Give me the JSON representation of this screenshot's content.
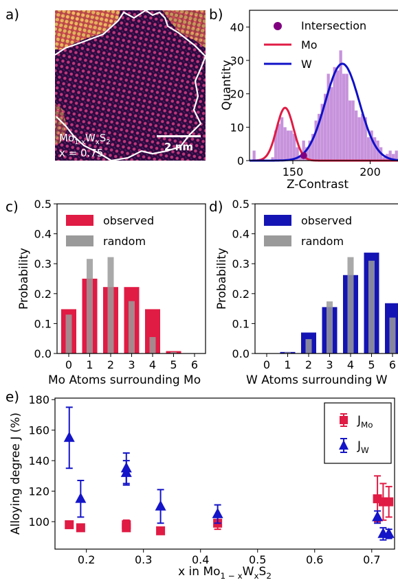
{
  "panel_labels": {
    "a": "a)",
    "b": "b)",
    "c": "c)",
    "d": "d)",
    "e": "e)"
  },
  "panel_a": {
    "composition_label": "Mo1-xWxS2",
    "x_label": "x = 0.75",
    "scale_bar": "2 nm"
  },
  "chart_data": [
    {
      "id": "b",
      "type": "histogram",
      "xlabel": "Z-Contrast",
      "ylabel": "Quantity",
      "xlim": [
        122,
        218
      ],
      "ylim": [
        0,
        45
      ],
      "xticks": [
        150,
        200
      ],
      "yticks": [
        0,
        10,
        20,
        30,
        40
      ],
      "legend": [
        {
          "label": "Intersection",
          "marker": "circle",
          "color": "#800080"
        },
        {
          "label": "Mo",
          "marker": "line",
          "color": "#e01b44"
        },
        {
          "label": "W",
          "marker": "line",
          "color": "#1010c8"
        }
      ],
      "legend_position": "top-left",
      "histogram": {
        "bin_start": 122,
        "bin_width": 2,
        "color": "#c793dc",
        "counts": [
          0,
          3,
          0,
          0,
          0,
          0,
          0,
          1,
          9,
          11,
          13,
          10,
          9,
          9,
          8,
          4,
          1,
          6,
          4,
          6,
          8,
          12,
          14,
          17,
          20,
          26,
          22,
          28,
          27,
          33,
          26,
          26,
          18,
          18,
          15,
          13,
          14,
          13,
          7,
          9,
          7,
          6,
          4,
          1,
          2,
          3,
          2,
          3
        ]
      },
      "fits": [
        {
          "name": "Mo",
          "type": "gaussian",
          "amplitude": 15.8,
          "center": 145,
          "sigma": 5.5,
          "color": "#e01b44"
        },
        {
          "name": "W",
          "type": "gaussian",
          "amplitude": 29,
          "center": 182,
          "sigma": 11,
          "color": "#1010c8"
        }
      ],
      "intersection": {
        "x": 157,
        "y": 1.5
      }
    },
    {
      "id": "c",
      "type": "bar",
      "xlabel": "Mo Atoms surrounding Mo",
      "ylabel": "Probability",
      "categories": [
        "0",
        "1",
        "2",
        "3",
        "4",
        "5",
        "6"
      ],
      "ylim": [
        0,
        0.5
      ],
      "yticks": [
        0.0,
        0.1,
        0.2,
        0.3,
        0.4,
        0.5
      ],
      "series": [
        {
          "name": "observed",
          "color": "#e01b44",
          "values": [
            0.148,
            0.25,
            0.222,
            0.222,
            0.148,
            0.008,
            0
          ]
        },
        {
          "name": "random",
          "color": "#9a9a9a",
          "values": [
            0.13,
            0.316,
            0.322,
            0.175,
            0.055,
            0.005,
            0
          ]
        }
      ],
      "legend_position": "top-left"
    },
    {
      "id": "d",
      "type": "bar",
      "xlabel": "W Atoms surrounding W",
      "ylabel": "Probability",
      "categories": [
        "0",
        "1",
        "2",
        "3",
        "4",
        "5",
        "6"
      ],
      "ylim": [
        0,
        0.5
      ],
      "yticks": [
        0.0,
        0.1,
        0.2,
        0.3,
        0.4,
        0.5
      ],
      "series": [
        {
          "name": "observed",
          "color": "#1414b4",
          "values": [
            0,
            0.005,
            0.07,
            0.155,
            0.262,
            0.337,
            0.168
          ]
        },
        {
          "name": "random",
          "color": "#9a9a9a",
          "values": [
            0,
            0.004,
            0.048,
            0.174,
            0.322,
            0.31,
            0.12
          ]
        }
      ],
      "legend_position": "top-left"
    },
    {
      "id": "e",
      "type": "scatter",
      "xlabel": "x in Mo1−xWxS2",
      "ylabel": "Alloying degree J (%)",
      "xlim": [
        0.145,
        0.74
      ],
      "ylim": [
        82,
        181
      ],
      "xticks": [
        0.2,
        0.3,
        0.4,
        0.5,
        0.6,
        0.7
      ],
      "yticks": [
        100,
        120,
        140,
        160,
        180
      ],
      "legend_position": "top-right",
      "series": [
        {
          "name": "J_Mo",
          "marker": "square",
          "color": "#e01b44",
          "points": [
            {
              "x": 0.17,
              "y": 98,
              "err": 0
            },
            {
              "x": 0.19,
              "y": 96,
              "err": 0
            },
            {
              "x": 0.27,
              "y": 98,
              "err": 3
            },
            {
              "x": 0.27,
              "y": 96,
              "err": 2
            },
            {
              "x": 0.33,
              "y": 94,
              "err": 2
            },
            {
              "x": 0.43,
              "y": 99,
              "err": 4
            },
            {
              "x": 0.71,
              "y": 115,
              "err": 15
            },
            {
              "x": 0.72,
              "y": 113,
              "err": 12
            },
            {
              "x": 0.73,
              "y": 113,
              "err": 10
            }
          ]
        },
        {
          "name": "J_W",
          "marker": "triangle",
          "color": "#1414c8",
          "points": [
            {
              "x": 0.17,
              "y": 155,
              "err": 20
            },
            {
              "x": 0.19,
              "y": 115,
              "err": 12
            },
            {
              "x": 0.27,
              "y": 135,
              "err": 10
            },
            {
              "x": 0.27,
              "y": 132,
              "err": 8
            },
            {
              "x": 0.33,
              "y": 110,
              "err": 11
            },
            {
              "x": 0.43,
              "y": 105,
              "err": 6
            },
            {
              "x": 0.71,
              "y": 103,
              "err": 4
            },
            {
              "x": 0.72,
              "y": 92,
              "err": 4
            },
            {
              "x": 0.73,
              "y": 92,
              "err": 3
            }
          ]
        }
      ]
    }
  ]
}
